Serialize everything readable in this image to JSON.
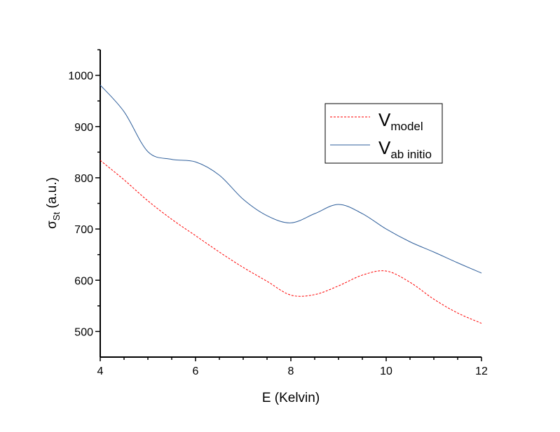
{
  "chart_data": {
    "type": "line",
    "title": "",
    "xlabel": "E (Kelvin)",
    "ylabel_main": "σ",
    "ylabel_sub": "St",
    "ylabel_unit": " (a.u.)",
    "xlim": [
      4,
      12
    ],
    "ylim": [
      450,
      1050
    ],
    "xticks": [
      4,
      6,
      8,
      10,
      12
    ],
    "yticks": [
      500,
      600,
      700,
      800,
      900,
      1000
    ],
    "grid": false,
    "legend_position": "top-right",
    "x": [
      4,
      4.5,
      5,
      5.5,
      6,
      6.5,
      7,
      7.5,
      8,
      8.5,
      9,
      9.5,
      10,
      10.5,
      11,
      11.5,
      12
    ],
    "series": [
      {
        "name_main": "V",
        "name_sub": "model",
        "color": "#ff0000",
        "dashed": true,
        "values": [
          834,
          796,
          755,
          719,
          687,
          655,
          625,
          598,
          571,
          572,
          589,
          610,
          618,
          596,
          563,
          536,
          516
        ]
      },
      {
        "name_main": "V",
        "name_sub": "ab initio",
        "color": "#2f5f9b",
        "dashed": false,
        "values": [
          981,
          929,
          851,
          836,
          831,
          805,
          758,
          726,
          712,
          730,
          748,
          730,
          700,
          675,
          655,
          634,
          614
        ]
      }
    ]
  }
}
